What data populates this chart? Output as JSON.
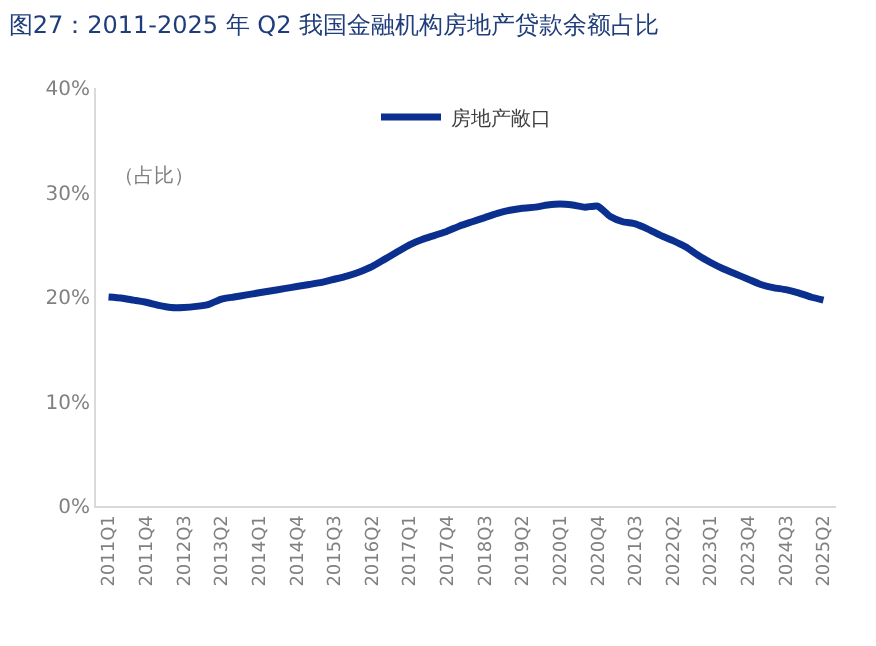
{
  "chart_data": {
    "type": "line",
    "title": "图27：2011-2025 年 Q2 我国金融机构房地产贷款余额占比",
    "ylabel": "（占比）",
    "categories": [
      "2011Q1",
      null,
      null,
      "2011Q4",
      null,
      null,
      "2012Q3",
      null,
      null,
      "2013Q2",
      null,
      null,
      "2014Q1",
      null,
      null,
      "2014Q4",
      null,
      null,
      "2015Q3",
      null,
      null,
      "2016Q2",
      null,
      null,
      "2017Q1",
      null,
      null,
      "2017Q4",
      null,
      null,
      "2018Q3",
      null,
      null,
      "2019Q2",
      null,
      null,
      "2020Q1",
      null,
      null,
      "2020Q4",
      null,
      null,
      "2021Q3",
      null,
      null,
      "2022Q2",
      null,
      null,
      "2023Q1",
      null,
      null,
      "2023Q4",
      null,
      null,
      "2024Q3",
      null,
      null,
      "2025Q2"
    ],
    "series": [
      {
        "name": "房地产敞口",
        "color": "#0b2f8f",
        "values": [
          20.0,
          19.9,
          19.7,
          19.5,
          19.2,
          19.0,
          19.0,
          19.1,
          19.3,
          19.8,
          20.0,
          20.2,
          20.4,
          20.6,
          20.8,
          21.0,
          21.2,
          21.4,
          21.7,
          22.0,
          22.4,
          22.9,
          23.6,
          24.3,
          25.0,
          25.5,
          25.9,
          26.3,
          26.8,
          27.2,
          27.6,
          28.0,
          28.3,
          28.5,
          28.6,
          28.8,
          28.9,
          28.8,
          28.6,
          28.7,
          27.7,
          27.2,
          27.0,
          26.5,
          25.9,
          25.4,
          24.8,
          24.0,
          23.3,
          22.7,
          22.2,
          21.7,
          21.2,
          20.9,
          20.7,
          20.4,
          20.0,
          19.7
        ]
      }
    ],
    "ylim": [
      0,
      40
    ],
    "yticks": [
      {
        "value": 0,
        "label": "0%"
      },
      {
        "value": 10,
        "label": "10%"
      },
      {
        "value": 20,
        "label": "20%"
      },
      {
        "value": 30,
        "label": "30%"
      },
      {
        "value": 40,
        "label": "40%"
      }
    ],
    "legend": "top",
    "marker": "none",
    "line_style": "solid"
  }
}
